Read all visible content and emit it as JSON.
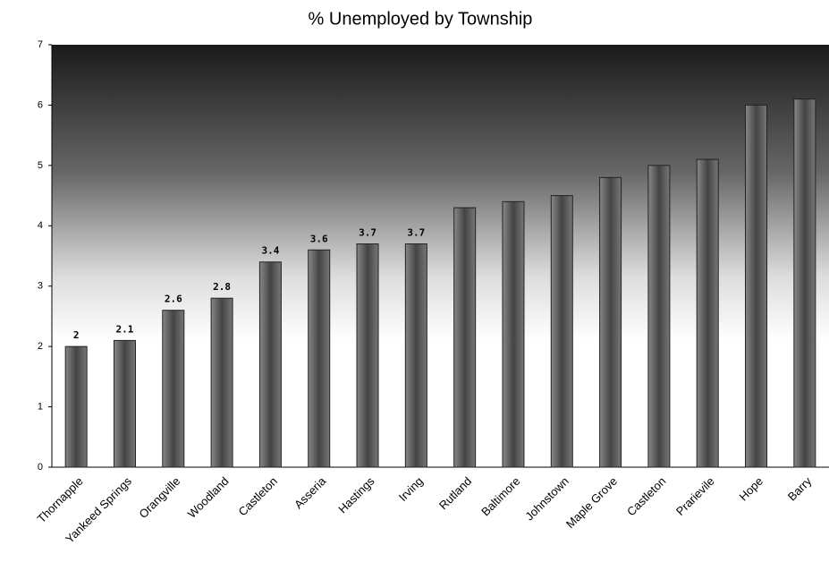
{
  "chart_data": {
    "type": "bar",
    "title": "% Unemployed by Township",
    "categories": [
      "Thornapple",
      "Yankeed Springs",
      "Orangville",
      "Woodland",
      "Castleton",
      "Asseria",
      "Hastings",
      "Irving",
      "Rutland",
      "Baltimore",
      "Johnstown",
      "Maple Grove",
      "Castleton",
      "Prarievile",
      "Hope",
      "Barry"
    ],
    "values": [
      2,
      2.1,
      2.6,
      2.8,
      3.4,
      3.6,
      3.7,
      3.7,
      4.3,
      4.4,
      4.5,
      4.8,
      5.0,
      5.1,
      6.0,
      6.1
    ],
    "value_labels": [
      "2",
      "2.1",
      "2.6",
      "2.8",
      "3.4",
      "3.6",
      "3.7",
      "3.7",
      null,
      null,
      null,
      null,
      null,
      null,
      null,
      null
    ],
    "color": "#555555",
    "ylim": [
      0,
      7
    ],
    "yticks": [
      0,
      1,
      2,
      3,
      4,
      5,
      6,
      7
    ],
    "grid": false
  }
}
